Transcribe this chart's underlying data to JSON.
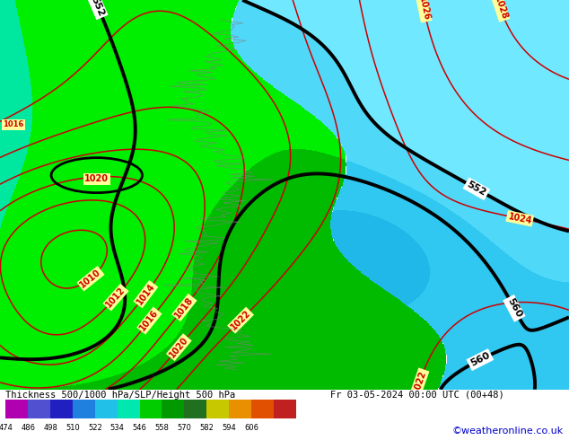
{
  "title_left": "Thickness 500/1000 hPa/SLP/Height 500 hPa",
  "title_right": "Fr 03-05-2024 00:00 UTC (00+48)",
  "credit": "©weatheronline.co.uk",
  "colorbar_values": [
    474,
    486,
    498,
    510,
    522,
    534,
    546,
    558,
    570,
    582,
    594,
    606
  ],
  "colorbar_colors": [
    "#b000b0",
    "#5050d0",
    "#2020c0",
    "#2080e0",
    "#20c0e8",
    "#00e8b0",
    "#00cc00",
    "#009900",
    "#207020",
    "#c8c800",
    "#e89000",
    "#e05000",
    "#c02020"
  ],
  "sea_color_light": "#60d8f8",
  "sea_color_dark": "#40b8e0",
  "bg_main": "#00dd00",
  "credit_color": "#0000cc"
}
